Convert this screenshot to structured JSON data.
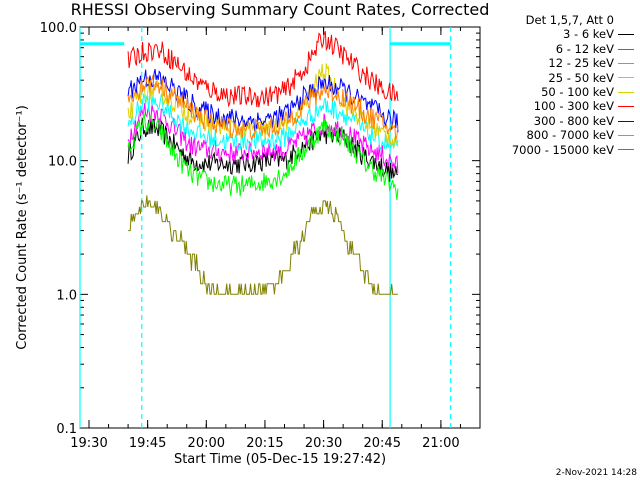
{
  "title": "RHESSI Observing Summary Count Rates, Corrected",
  "footer": "2-Nov-2021 14:28",
  "chart_data": {
    "type": "line",
    "title": "RHESSI Observing Summary Count Rates, Corrected",
    "xlabel": "Start Time (05-Dec-15 19:27:42)",
    "ylabel": "Corrected Count Rate (s⁻¹ detector⁻¹)",
    "y_scale": "log",
    "ylim": [
      0.1,
      100.0
    ],
    "xlim": [
      "19:27:42",
      "21:10:00"
    ],
    "x_ticks": [
      "19:30",
      "19:45",
      "20:00",
      "20:15",
      "20:30",
      "20:45",
      "21:00"
    ],
    "y_ticks": [
      "0.1",
      "1.0",
      "10.0",
      "100.0"
    ],
    "legend_title": "Det 1,5,7, Att 0",
    "legend_position": "right, outside plot",
    "data_gap": [
      "19:27:42",
      "19:39:30"
    ],
    "series": [
      {
        "name": "3 - 6 keV",
        "color": "#000000",
        "x": [
          "19:40",
          "19:44",
          "19:48",
          "19:52",
          "19:56",
          "20:00",
          "20:05",
          "20:10",
          "20:15",
          "20:20",
          "20:25",
          "20:30",
          "20:35",
          "20:40",
          "20:45",
          "20:49"
        ],
        "values": [
          11,
          18,
          17,
          13,
          10,
          9.5,
          9.5,
          9.5,
          10,
          10,
          13,
          16,
          15,
          11,
          9,
          7.5
        ]
      },
      {
        "name": "6 - 12 keV",
        "color": "#ff00ff",
        "x": [
          "19:40",
          "19:44",
          "19:48",
          "19:52",
          "19:56",
          "20:00",
          "20:05",
          "20:10",
          "20:15",
          "20:20",
          "20:25",
          "20:30",
          "20:35",
          "20:40",
          "20:45",
          "20:49"
        ],
        "values": [
          15,
          24,
          23,
          17,
          13,
          12,
          11.5,
          11.5,
          12,
          12,
          15,
          19,
          17,
          13,
          11,
          9
        ]
      },
      {
        "name": "12 - 25 keV",
        "color": "#00ff00",
        "x": [
          "19:40",
          "19:44",
          "19:48",
          "19:52",
          "19:56",
          "20:00",
          "20:05",
          "20:10",
          "20:15",
          "20:20",
          "20:25",
          "20:30",
          "20:35",
          "20:40",
          "20:45",
          "20:49"
        ],
        "values": [
          12,
          20,
          17,
          11,
          8,
          7,
          6.5,
          6.5,
          7,
          8,
          12,
          18,
          15,
          10,
          7.5,
          6
        ]
      },
      {
        "name": "25 - 50 keV",
        "color": "#00ffff",
        "x": [
          "19:40",
          "19:44",
          "19:48",
          "19:52",
          "19:56",
          "20:00",
          "20:05",
          "20:10",
          "20:15",
          "20:20",
          "20:25",
          "20:30",
          "20:35",
          "20:40",
          "20:45",
          "20:49"
        ],
        "values": [
          18,
          28,
          27,
          21,
          17,
          15,
          14,
          14,
          14,
          15,
          20,
          26,
          23,
          17,
          14,
          12
        ]
      },
      {
        "name": "50 - 100 keV",
        "color": "#e0d000",
        "x": [
          "19:40",
          "19:44",
          "19:48",
          "19:52",
          "19:56",
          "20:00",
          "20:05",
          "20:10",
          "20:15",
          "20:20",
          "20:25",
          "20:30",
          "20:35",
          "20:40",
          "20:45",
          "20:49"
        ],
        "values": [
          22,
          34,
          33,
          27,
          22,
          19,
          18,
          17,
          17,
          19,
          26,
          48,
          28,
          20,
          16,
          14
        ]
      },
      {
        "name": "100 - 300 keV",
        "color": "#ff0000",
        "x": [
          "19:40",
          "19:44",
          "19:48",
          "19:52",
          "19:56",
          "20:00",
          "20:05",
          "20:10",
          "20:15",
          "20:20",
          "20:25",
          "20:30",
          "20:35",
          "20:40",
          "20:45",
          "20:49"
        ],
        "values": [
          55,
          66,
          68,
          55,
          42,
          35,
          31,
          30,
          30,
          33,
          48,
          85,
          62,
          45,
          34,
          30
        ]
      },
      {
        "name": "300 - 800 keV",
        "color": "#0000ff",
        "x": [
          "19:40",
          "19:44",
          "19:48",
          "19:52",
          "19:56",
          "20:00",
          "20:05",
          "20:10",
          "20:15",
          "20:20",
          "20:25",
          "20:30",
          "20:35",
          "20:40",
          "20:45",
          "20:49"
        ],
        "values": [
          33,
          42,
          41,
          34,
          27,
          23,
          21,
          20,
          20,
          22,
          30,
          38,
          34,
          27,
          22,
          19
        ]
      },
      {
        "name": "800 - 7000 keV",
        "color": "#ff8000",
        "x": [
          "19:40",
          "19:44",
          "19:48",
          "19:52",
          "19:56",
          "20:00",
          "20:05",
          "20:10",
          "20:15",
          "20:20",
          "20:25",
          "20:30",
          "20:35",
          "20:40",
          "20:45",
          "20:49"
        ],
        "values": [
          28,
          38,
          37,
          30,
          24,
          20,
          18,
          17,
          17,
          19,
          26,
          34,
          30,
          23,
          19,
          16
        ]
      },
      {
        "name": "7000 - 15000 keV",
        "color": "#808000",
        "x": [
          "19:40",
          "19:42",
          "19:45",
          "19:48",
          "19:51",
          "19:54",
          "19:57",
          "20:00",
          "20:05",
          "20:10",
          "20:15",
          "20:18",
          "20:21",
          "20:24",
          "20:27",
          "20:30",
          "20:33",
          "20:36",
          "20:39",
          "20:42",
          "20:45",
          "20:49"
        ],
        "values": [
          3,
          4,
          5,
          4.5,
          3,
          2.5,
          1.7,
          1.1,
          1.0,
          1.0,
          1.0,
          1.3,
          1.7,
          2.5,
          4,
          4.5,
          4,
          2.5,
          1.7,
          1.2,
          1.0,
          1.0
        ]
      }
    ],
    "annotations": [
      {
        "type": "vertical_line",
        "color": "#00ffff",
        "style": "solid",
        "x": "19:27:42"
      },
      {
        "type": "vertical_line",
        "color": "#00ffff",
        "style": "dashed",
        "x": "19:43:30"
      },
      {
        "type": "vertical_line",
        "color": "#00ffff",
        "style": "solid",
        "x": "20:47:00"
      },
      {
        "type": "vertical_line",
        "color": "#00ffff",
        "style": "dashed",
        "x": "21:02:30"
      },
      {
        "type": "horizontal_segment",
        "color": "#00ffff",
        "y": 75,
        "x": [
          "19:27:42",
          "19:39:00"
        ]
      },
      {
        "type": "horizontal_segment",
        "color": "#00ffff",
        "y": 75,
        "x": [
          "20:47:00",
          "21:02:30"
        ]
      }
    ]
  }
}
